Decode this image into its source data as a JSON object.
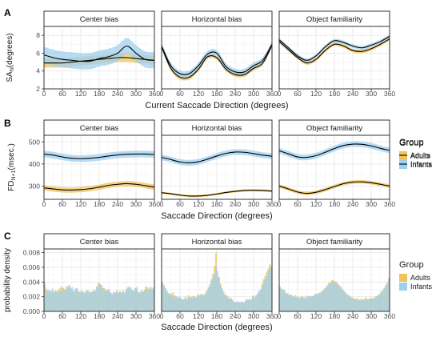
{
  "colors": {
    "adults": "#E69F00",
    "infants": "#56B4E9",
    "adults_band": "#F0C35A",
    "infants_band": "#9FD0F0",
    "line": "#000000",
    "panel_border": "#333333",
    "grid_major": "#e6e6e6",
    "grid_minor": "#f2f2f2",
    "strip_fill": "#ffffff"
  },
  "legend": {
    "title": "Group",
    "items": [
      "Adults",
      "Infants"
    ]
  },
  "chart_data": [
    {
      "row": "A",
      "type": "line",
      "ylabel": "SA",
      "ylabel_sub": "N",
      "ylabel_suffix": "(degrees)",
      "xlabel": "Current Saccade Direction (degrees)",
      "xlim": [
        0,
        360
      ],
      "ylim": [
        2,
        9
      ],
      "xticks": [
        0,
        60,
        120,
        180,
        240,
        300,
        360
      ],
      "yticks": [
        2,
        4,
        6,
        8
      ],
      "x": [
        0,
        30,
        60,
        90,
        120,
        150,
        180,
        210,
        240,
        270,
        300,
        330,
        360
      ],
      "panels": [
        {
          "title": "Center bias",
          "series": [
            {
              "name": "Adults",
              "values": [
                4.9,
                4.9,
                4.9,
                5.0,
                5.1,
                5.2,
                5.3,
                5.4,
                5.5,
                5.5,
                5.4,
                5.3,
                5.2
              ],
              "ci": 0.5
            },
            {
              "name": "Infants",
              "values": [
                5.8,
                5.5,
                5.3,
                5.2,
                5.1,
                5.1,
                5.4,
                5.6,
                6.0,
                6.8,
                6.0,
                5.3,
                5.2
              ],
              "ci": 0.9
            }
          ]
        },
        {
          "title": "Horizontal bias",
          "series": [
            {
              "name": "Adults",
              "values": [
                6.7,
                4.3,
                3.3,
                3.3,
                4.2,
                5.6,
                5.5,
                4.2,
                3.6,
                3.6,
                4.3,
                4.9,
                6.9
              ],
              "ci": 0.25
            },
            {
              "name": "Infants",
              "values": [
                6.8,
                4.6,
                3.7,
                3.7,
                4.6,
                5.9,
                6.0,
                4.5,
                3.9,
                3.9,
                4.6,
                5.2,
                7.0
              ],
              "ci": 0.35
            }
          ]
        },
        {
          "title": "Object familiarity",
          "series": [
            {
              "name": "Adults",
              "values": [
                7.3,
                6.4,
                5.5,
                4.9,
                5.3,
                6.3,
                7.0,
                6.8,
                6.3,
                6.2,
                6.5,
                7.0,
                7.6
              ],
              "ci": 0.2
            },
            {
              "name": "Infants",
              "values": [
                7.5,
                6.6,
                5.7,
                5.2,
                5.7,
                6.7,
                7.4,
                7.2,
                6.8,
                6.6,
                6.9,
                7.3,
                7.9
              ],
              "ci": 0.2
            }
          ]
        }
      ]
    },
    {
      "row": "B",
      "type": "line",
      "ylabel": "FD",
      "ylabel_sub": "N+1",
      "ylabel_suffix": "(msec.)",
      "xlabel": "Saccade Direction (degrees)",
      "xlim": [
        0,
        360
      ],
      "ylim": [
        240,
        530
      ],
      "xticks": [
        0,
        60,
        120,
        180,
        240,
        300,
        360
      ],
      "yticks": [
        300,
        400,
        500
      ],
      "x": [
        0,
        30,
        60,
        90,
        120,
        150,
        180,
        210,
        240,
        270,
        300,
        330,
        360
      ],
      "panels": [
        {
          "title": "Center bias",
          "series": [
            {
              "name": "Adults",
              "values": [
                292,
                287,
                283,
                282,
                284,
                288,
                295,
                303,
                308,
                311,
                308,
                302,
                295
              ],
              "ci": 12
            },
            {
              "name": "Infants",
              "values": [
                445,
                440,
                432,
                426,
                424,
                426,
                430,
                436,
                441,
                444,
                445,
                445,
                443
              ],
              "ci": 15
            }
          ]
        },
        {
          "title": "Horizontal bias",
          "series": [
            {
              "name": "Adults",
              "values": [
                270,
                265,
                259,
                255,
                255,
                258,
                264,
                271,
                276,
                280,
                281,
                280,
                277
              ],
              "ci": 5
            },
            {
              "name": "Infants",
              "values": [
                430,
                420,
                409,
                405,
                410,
                422,
                436,
                448,
                454,
                453,
                447,
                440,
                435
              ],
              "ci": 13
            }
          ]
        },
        {
          "title": "Object familiarity",
          "series": [
            {
              "name": "Adults",
              "values": [
                300,
                287,
                273,
                267,
                272,
                284,
                298,
                311,
                318,
                319,
                315,
                308,
                300
              ],
              "ci": 8
            },
            {
              "name": "Infants",
              "values": [
                460,
                446,
                432,
                430,
                438,
                453,
                470,
                484,
                490,
                489,
                482,
                471,
                462
              ],
              "ci": 13
            }
          ]
        }
      ]
    },
    {
      "row": "C",
      "type": "bar",
      "ylabel": "probability density",
      "xlabel": "Saccade Direction (degrees)",
      "xlim": [
        0,
        360
      ],
      "ylim": [
        0,
        0.0085
      ],
      "xticks": [
        0,
        60,
        120,
        180,
        240,
        300,
        360
      ],
      "yticks": [
        0.0,
        0.002,
        0.004,
        0.006,
        0.008
      ],
      "ytick_labels": [
        "0.000",
        "0.002",
        "0.004",
        "0.006",
        "0.008"
      ],
      "bin_width": 5,
      "bin_starts": [
        0,
        5,
        10,
        15,
        20,
        25,
        30,
        35,
        40,
        45,
        50,
        55,
        60,
        65,
        70,
        75,
        80,
        85,
        90,
        95,
        100,
        105,
        110,
        115,
        120,
        125,
        130,
        135,
        140,
        145,
        150,
        155,
        160,
        165,
        170,
        175,
        180,
        185,
        190,
        195,
        200,
        205,
        210,
        215,
        220,
        225,
        230,
        235,
        240,
        245,
        250,
        255,
        260,
        265,
        270,
        275,
        280,
        285,
        290,
        295,
        300,
        305,
        310,
        315,
        320,
        325,
        330,
        335,
        340,
        345,
        350,
        355
      ],
      "panels": [
        {
          "title": "Center bias",
          "series": [
            {
              "name": "Adults",
              "values": [
                0.004,
                0.0031,
                0.0028,
                0.0027,
                0.0025,
                0.0029,
                0.0026,
                0.0029,
                0.0027,
                0.003,
                0.0032,
                0.0034,
                0.0031,
                0.003,
                0.0034,
                0.0032,
                0.0035,
                0.0031,
                0.0028,
                0.0026,
                0.003,
                0.0031,
                0.0027,
                0.0025,
                0.0027,
                0.0026,
                0.0026,
                0.0028,
                0.0029,
                0.0025,
                0.0024,
                0.0027,
                0.003,
                0.0026,
                0.0034,
                0.0039,
                0.0037,
                0.0034,
                0.0031,
                0.0032,
                0.0029,
                0.003,
                0.0028,
                0.0025,
                0.0022,
                0.0027,
                0.0025,
                0.0024,
                0.0026,
                0.0028,
                0.0026,
                0.0027,
                0.0024,
                0.003,
                0.0033,
                0.0031,
                0.0029,
                0.0029,
                0.0027,
                0.0032,
                0.0031,
                0.0025,
                0.0025,
                0.0029,
                0.0027,
                0.003,
                0.0034,
                0.0033,
                0.0031,
                0.0032,
                0.003,
                0.0032
              ]
            },
            {
              "name": "Infants",
              "values": [
                0.0036,
                0.0027,
                0.0029,
                0.0029,
                0.0028,
                0.0031,
                0.0026,
                0.0028,
                0.0027,
                0.0028,
                0.0026,
                0.0028,
                0.0032,
                0.003,
                0.0029,
                0.0034,
                0.0036,
                0.0032,
                0.0033,
                0.0028,
                0.0031,
                0.0032,
                0.0028,
                0.0027,
                0.0029,
                0.0027,
                0.0024,
                0.0028,
                0.0029,
                0.0027,
                0.0027,
                0.0026,
                0.0027,
                0.0029,
                0.0033,
                0.0036,
                0.0038,
                0.0036,
                0.0032,
                0.0029,
                0.0027,
                0.0029,
                0.003,
                0.0026,
                0.0024,
                0.0025,
                0.0026,
                0.0029,
                0.0025,
                0.0026,
                0.0025,
                0.0029,
                0.0026,
                0.0029,
                0.0031,
                0.0034,
                0.0033,
                0.003,
                0.0028,
                0.0031,
                0.0033,
                0.0027,
                0.0026,
                0.0029,
                0.0026,
                0.0028,
                0.0031,
                0.003,
                0.0028,
                0.0034,
                0.0031,
                0.0033
              ]
            }
          ]
        },
        {
          "title": "Horizontal bias",
          "series": [
            {
              "name": "Adults",
              "values": [
                0.0039,
                0.0035,
                0.0031,
                0.0028,
                0.0023,
                0.0025,
                0.0021,
                0.0026,
                0.0022,
                0.0019,
                0.0018,
                0.002,
                0.0018,
                0.0016,
                0.0015,
                0.0019,
                0.0017,
                0.0022,
                0.0018,
                0.002,
                0.0018,
                0.0021,
                0.0019,
                0.0023,
                0.0021,
                0.0024,
                0.0023,
                0.0021,
                0.0022,
                0.0029,
                0.0031,
                0.0037,
                0.0042,
                0.0051,
                0.0062,
                0.008,
                0.0048,
                0.0047,
                0.0038,
                0.0031,
                0.0027,
                0.0021,
                0.0019,
                0.002,
                0.0018,
                0.0018,
                0.0014,
                0.0012,
                0.0013,
                0.0011,
                0.0012,
                0.0012,
                0.0012,
                0.0012,
                0.0014,
                0.0017,
                0.0016,
                0.0016,
                0.0015,
                0.0021,
                0.0018,
                0.0019,
                0.0024,
                0.0026,
                0.0029,
                0.0037,
                0.0044,
                0.0048,
                0.0053,
                0.0058,
                0.0064,
                0.0062
              ]
            },
            {
              "name": "Infants",
              "values": [
                0.004,
                0.0036,
                0.0032,
                0.0027,
                0.0025,
                0.0022,
                0.0024,
                0.002,
                0.0019,
                0.0021,
                0.0019,
                0.0018,
                0.0019,
                0.0016,
                0.0017,
                0.002,
                0.0015,
                0.0019,
                0.002,
                0.0017,
                0.0021,
                0.0019,
                0.0019,
                0.0021,
                0.0022,
                0.0022,
                0.0022,
                0.0023,
                0.0025,
                0.0027,
                0.0033,
                0.0035,
                0.0044,
                0.0047,
                0.0052,
                0.006,
                0.0055,
                0.0045,
                0.0036,
                0.0031,
                0.0025,
                0.0023,
                0.0022,
                0.0017,
                0.0016,
                0.0017,
                0.0016,
                0.0013,
                0.0013,
                0.0014,
                0.0013,
                0.0013,
                0.0014,
                0.0012,
                0.0013,
                0.0016,
                0.0015,
                0.0017,
                0.0017,
                0.0021,
                0.002,
                0.0022,
                0.0024,
                0.0028,
                0.003,
                0.0034,
                0.0039,
                0.0043,
                0.0048,
                0.0055,
                0.0058,
                0.006
              ]
            }
          ]
        },
        {
          "title": "Object familiarity",
          "series": [
            {
              "name": "Adults",
              "values": [
                0.0033,
                0.003,
                0.003,
                0.0027,
                0.0024,
                0.0025,
                0.0021,
                0.0023,
                0.002,
                0.0019,
                0.0022,
                0.0018,
                0.002,
                0.0017,
                0.0021,
                0.0018,
                0.0016,
                0.002,
                0.0018,
                0.0021,
                0.002,
                0.0019,
                0.0021,
                0.0024,
                0.0023,
                0.0022,
                0.0024,
                0.0027,
                0.0029,
                0.003,
                0.0033,
                0.0036,
                0.004,
                0.0039,
                0.0043,
                0.0042,
                0.0041,
                0.004,
                0.0036,
                0.0035,
                0.0033,
                0.003,
                0.0027,
                0.0025,
                0.0022,
                0.0021,
                0.002,
                0.0019,
                0.0018,
                0.0016,
                0.0018,
                0.0017,
                0.0015,
                0.0017,
                0.0016,
                0.0017,
                0.0019,
                0.0015,
                0.0017,
                0.0018,
                0.0018,
                0.0016,
                0.002,
                0.0019,
                0.0022,
                0.0024,
                0.0027,
                0.0028,
                0.0032,
                0.0036,
                0.004,
                0.0046
              ]
            },
            {
              "name": "Infants",
              "values": [
                0.0034,
                0.0031,
                0.0028,
                0.0029,
                0.0025,
                0.0023,
                0.0023,
                0.0021,
                0.0022,
                0.002,
                0.0019,
                0.002,
                0.0018,
                0.0019,
                0.0018,
                0.002,
                0.0019,
                0.0018,
                0.0021,
                0.0019,
                0.0021,
                0.0021,
                0.0022,
                0.0021,
                0.0024,
                0.0025,
                0.0026,
                0.0025,
                0.0028,
                0.0031,
                0.0032,
                0.0035,
                0.0037,
                0.0038,
                0.004,
                0.0041,
                0.0039,
                0.0038,
                0.0037,
                0.0033,
                0.0031,
                0.0029,
                0.0028,
                0.0024,
                0.0023,
                0.0022,
                0.0019,
                0.0018,
                0.0017,
                0.0017,
                0.0016,
                0.0015,
                0.0016,
                0.0016,
                0.0015,
                0.0016,
                0.0017,
                0.0017,
                0.0016,
                0.0017,
                0.0017,
                0.0018,
                0.0019,
                0.0021,
                0.0021,
                0.0023,
                0.0025,
                0.0029,
                0.0031,
                0.0034,
                0.0038,
                0.0043
              ]
            }
          ]
        }
      ]
    }
  ]
}
